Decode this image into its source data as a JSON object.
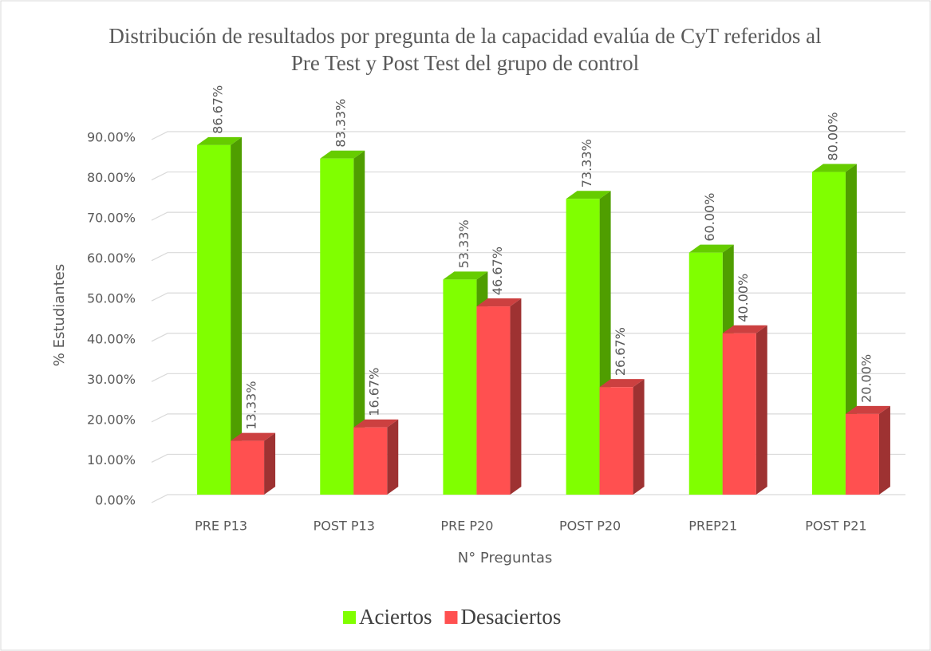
{
  "chart_data": {
    "type": "bar3d",
    "title": "Distribución de resultados por pregunta de la capacidad  evalúa de CyT referidos  al Pre Test y Post Test del grupo  de control",
    "xlabel": "N° Preguntas",
    "ylabel": "% Estudiantes",
    "categories": [
      "PRE P13",
      "POST P13",
      "PRE P20",
      "POST P20",
      "PREP21",
      "POST P21"
    ],
    "series": [
      {
        "name": "Aciertos",
        "color": "#80ff00",
        "values": [
          86.67,
          83.33,
          53.33,
          73.33,
          60.0,
          80.0
        ],
        "value_labels": [
          "86.67%",
          "83.33%",
          "53.33%",
          "73.33%",
          "60.00%",
          "80.00%"
        ]
      },
      {
        "name": "Desaciertos",
        "color": "#ff5050",
        "values": [
          13.33,
          16.67,
          46.67,
          26.67,
          40.0,
          20.0
        ],
        "value_labels": [
          "13.33%",
          "16.67%",
          "46.67%",
          "26.67%",
          "40.00%",
          "20.00%"
        ]
      }
    ],
    "ylim": [
      0,
      90
    ],
    "yticks": [
      {
        "value": 0,
        "label": "0.00%"
      },
      {
        "value": 10,
        "label": "10.00%"
      },
      {
        "value": 20,
        "label": "20.00%"
      },
      {
        "value": 30,
        "label": "30.00%"
      },
      {
        "value": 40,
        "label": "40.00%"
      },
      {
        "value": 50,
        "label": "50.00%"
      },
      {
        "value": 60,
        "label": "60.00%"
      },
      {
        "value": 70,
        "label": "70.00%"
      },
      {
        "value": 80,
        "label": "80.00%"
      },
      {
        "value": 90,
        "label": "90.00%"
      }
    ],
    "grid": true,
    "legend": "bottom"
  }
}
